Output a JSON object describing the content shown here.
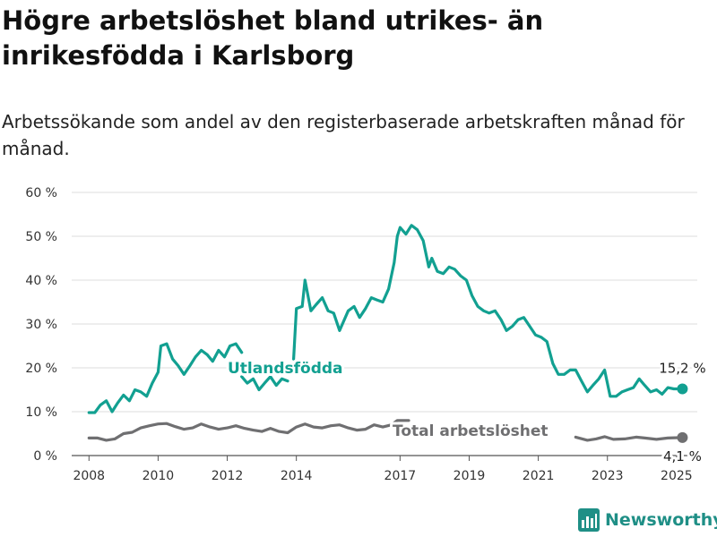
{
  "header": {
    "title": "Högre arbetslöshet bland utrikes- än inrikesfödda i Karlsborg",
    "subtitle": "Arbetssökande som andel av den registerbaserade arbetskraften månad för månad."
  },
  "brand": {
    "name": "Newsworthy",
    "icon": "bar-chart-icon",
    "color": "#1f8f86"
  },
  "chart_data": {
    "type": "line",
    "title": "Högre arbetslöshet bland utrikes- än inrikesfödda i Karlsborg",
    "subtitle": "Arbetssökande som andel av den registerbaserade arbetskraften månad för månad.",
    "ylim": [
      0,
      60
    ],
    "y_ticks": [
      0,
      10,
      20,
      30,
      40,
      50,
      60
    ],
    "y_tick_labels": [
      "0 %",
      "10 %",
      "20 %",
      "30 %",
      "40 %",
      "50 %",
      "60 %"
    ],
    "xlim": [
      2007.5,
      2025.6
    ],
    "x_ticks": [
      2008,
      2010,
      2012,
      2014,
      2017,
      2019,
      2021,
      2023,
      2025
    ],
    "x_tick_labels": [
      "2008",
      "2010",
      "2012",
      "2014",
      "2017",
      "2019",
      "2021",
      "2023",
      "2025"
    ],
    "grid": true,
    "series": [
      {
        "name": "Utlandsfödda",
        "color": "#12a091",
        "end_label": "15,2 %",
        "points": [
          [
            2008.0,
            9.8
          ],
          [
            2008.17,
            9.8
          ],
          [
            2008.33,
            11.5
          ],
          [
            2008.5,
            12.5
          ],
          [
            2008.67,
            10.0
          ],
          [
            2008.83,
            12.0
          ],
          [
            2009.0,
            13.8
          ],
          [
            2009.17,
            12.5
          ],
          [
            2009.33,
            15.0
          ],
          [
            2009.5,
            14.5
          ],
          [
            2009.67,
            13.5
          ],
          [
            2009.83,
            16.5
          ],
          [
            2010.0,
            19.0
          ],
          [
            2010.08,
            25.0
          ],
          [
            2010.25,
            25.5
          ],
          [
            2010.42,
            22.0
          ],
          [
            2010.58,
            20.5
          ],
          [
            2010.75,
            18.5
          ],
          [
            2010.92,
            20.5
          ],
          [
            2011.08,
            22.5
          ],
          [
            2011.25,
            24.0
          ],
          [
            2011.42,
            23.0
          ],
          [
            2011.58,
            21.5
          ],
          [
            2011.75,
            24.0
          ],
          [
            2011.92,
            22.5
          ],
          [
            2012.08,
            25.0
          ],
          [
            2012.25,
            25.5
          ],
          [
            2012.42,
            23.5
          ],
          null,
          [
            2012.42,
            18.0
          ],
          [
            2012.58,
            16.5
          ],
          [
            2012.75,
            17.5
          ],
          [
            2012.92,
            15.0
          ],
          [
            2013.08,
            16.5
          ],
          [
            2013.25,
            18.0
          ],
          [
            2013.42,
            16.0
          ],
          [
            2013.58,
            17.5
          ],
          [
            2013.75,
            17.0
          ],
          null,
          [
            2013.92,
            22.0
          ],
          [
            2014.0,
            33.5
          ],
          [
            2014.17,
            34.0
          ],
          [
            2014.25,
            40.0
          ],
          [
            2014.42,
            33.0
          ],
          [
            2014.58,
            34.5
          ],
          [
            2014.75,
            36.0
          ],
          [
            2014.92,
            33.0
          ],
          [
            2015.08,
            32.5
          ],
          [
            2015.25,
            28.5
          ],
          [
            2015.5,
            33.0
          ],
          [
            2015.67,
            34.0
          ],
          [
            2015.83,
            31.5
          ],
          [
            2016.0,
            33.5
          ],
          [
            2016.17,
            36.0
          ],
          [
            2016.33,
            35.5
          ],
          [
            2016.5,
            35.0
          ],
          [
            2016.67,
            38.0
          ],
          [
            2016.83,
            44.0
          ],
          [
            2016.92,
            50.0
          ],
          [
            2017.0,
            52.0
          ],
          [
            2017.17,
            50.5
          ],
          [
            2017.33,
            52.5
          ],
          [
            2017.5,
            51.5
          ],
          [
            2017.67,
            49.0
          ],
          [
            2017.83,
            43.0
          ],
          [
            2017.92,
            45.0
          ],
          [
            2018.08,
            42.0
          ],
          [
            2018.25,
            41.5
          ],
          [
            2018.42,
            43.0
          ],
          [
            2018.58,
            42.5
          ],
          [
            2018.75,
            41.0
          ],
          [
            2018.92,
            40.0
          ],
          [
            2019.08,
            36.5
          ],
          [
            2019.25,
            34.0
          ],
          [
            2019.42,
            33.0
          ],
          [
            2019.58,
            32.5
          ],
          [
            2019.75,
            33.0
          ],
          [
            2019.92,
            31.0
          ],
          [
            2020.08,
            28.5
          ],
          [
            2020.25,
            29.5
          ],
          [
            2020.42,
            31.0
          ],
          [
            2020.58,
            31.5
          ],
          [
            2020.75,
            29.5
          ],
          [
            2020.92,
            27.5
          ],
          [
            2021.08,
            27.0
          ],
          [
            2021.25,
            26.0
          ],
          [
            2021.42,
            21.0
          ],
          [
            2021.58,
            18.5
          ],
          [
            2021.75,
            18.5
          ],
          [
            2021.92,
            19.5
          ],
          [
            2022.08,
            19.5
          ],
          [
            2022.25,
            17.0
          ],
          [
            2022.42,
            14.5
          ],
          [
            2022.58,
            16.0
          ],
          [
            2022.75,
            17.5
          ],
          [
            2022.92,
            19.5
          ],
          [
            2023.08,
            13.5
          ],
          [
            2023.25,
            13.5
          ],
          [
            2023.42,
            14.5
          ],
          [
            2023.58,
            15.0
          ],
          [
            2023.75,
            15.5
          ],
          [
            2023.92,
            17.5
          ],
          [
            2024.08,
            16.0
          ],
          [
            2024.25,
            14.5
          ],
          [
            2024.42,
            15.0
          ],
          [
            2024.58,
            14.0
          ],
          [
            2024.75,
            15.5
          ],
          [
            2024.92,
            15.2
          ],
          [
            2025.17,
            15.2
          ]
        ]
      },
      {
        "name": "Total arbetslöshet",
        "color": "#6f6f71",
        "end_label": "4,1 %",
        "points": [
          [
            2008.0,
            4.0
          ],
          [
            2008.25,
            4.0
          ],
          [
            2008.5,
            3.5
          ],
          [
            2008.75,
            3.8
          ],
          [
            2009.0,
            5.0
          ],
          [
            2009.25,
            5.3
          ],
          [
            2009.5,
            6.3
          ],
          [
            2009.75,
            6.8
          ],
          [
            2010.0,
            7.2
          ],
          [
            2010.25,
            7.3
          ],
          [
            2010.5,
            6.6
          ],
          [
            2010.75,
            6.0
          ],
          [
            2011.0,
            6.3
          ],
          [
            2011.25,
            7.2
          ],
          [
            2011.5,
            6.5
          ],
          [
            2011.75,
            6.0
          ],
          [
            2012.0,
            6.3
          ],
          [
            2012.25,
            6.8
          ],
          [
            2012.5,
            6.2
          ],
          [
            2012.75,
            5.8
          ],
          [
            2013.0,
            5.5
          ],
          [
            2013.25,
            6.2
          ],
          [
            2013.5,
            5.5
          ],
          [
            2013.75,
            5.2
          ],
          [
            2014.0,
            6.5
          ],
          [
            2014.25,
            7.2
          ],
          [
            2014.5,
            6.5
          ],
          [
            2014.75,
            6.3
          ],
          [
            2015.0,
            6.8
          ],
          [
            2015.25,
            7.0
          ],
          [
            2015.5,
            6.3
          ],
          [
            2015.75,
            5.8
          ],
          [
            2016.0,
            6.0
          ],
          [
            2016.25,
            7.0
          ],
          [
            2016.5,
            6.5
          ],
          [
            2016.75,
            7.0
          ],
          [
            2016.92,
            8.0
          ],
          [
            2017.25,
            8.0
          ],
          null,
          [
            2022.08,
            4.2
          ],
          [
            2022.42,
            3.5
          ],
          [
            2022.67,
            3.8
          ],
          [
            2022.92,
            4.3
          ],
          [
            2023.17,
            3.7
          ],
          [
            2023.5,
            3.8
          ],
          [
            2023.83,
            4.2
          ],
          [
            2024.08,
            4.0
          ],
          [
            2024.42,
            3.7
          ],
          [
            2024.75,
            4.0
          ],
          [
            2025.17,
            4.1
          ]
        ]
      }
    ]
  }
}
